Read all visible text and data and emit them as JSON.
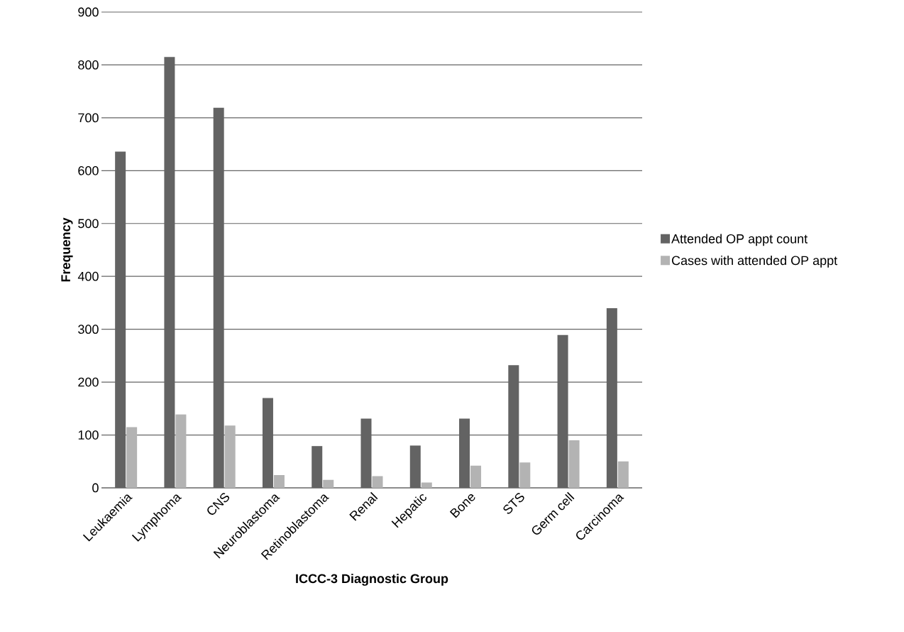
{
  "chart_data": {
    "type": "bar",
    "xlabel": "ICCC-3 Diagnostic Group",
    "ylabel": "Frequency",
    "categories": [
      "Leukaemia",
      "Lymphoma",
      "CNS",
      "Neuroblastoma",
      "Retinoblastoma",
      "Renal",
      "Hepatic",
      "Bone",
      "STS",
      "Germ cell",
      "Carcinoma"
    ],
    "series": [
      {
        "name": "Attended OP appt count",
        "color": "#636363",
        "values": [
          636,
          815,
          719,
          170,
          79,
          131,
          80,
          131,
          232,
          289,
          340
        ]
      },
      {
        "name": "Cases with attended OP appt",
        "color": "#b3b3b3",
        "values": [
          115,
          139,
          118,
          24,
          15,
          22,
          10,
          42,
          48,
          90,
          50
        ]
      }
    ],
    "ylim": [
      0,
      900
    ],
    "yticks": [
      0,
      100,
      200,
      300,
      400,
      500,
      600,
      700,
      800,
      900
    ],
    "grid": "y",
    "legend": "right"
  }
}
